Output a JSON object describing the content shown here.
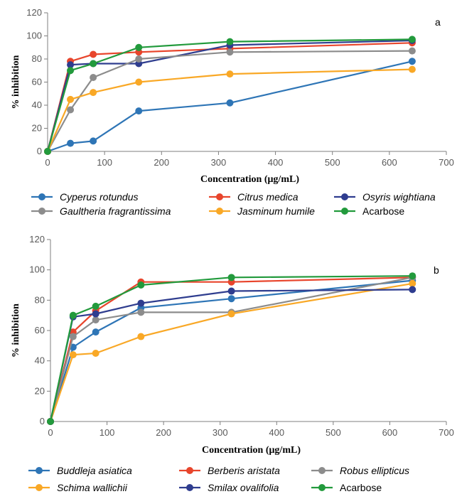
{
  "chart_data": [
    {
      "type": "line",
      "panel_label": "a",
      "xlabel": "Concentration (μg/mL)",
      "ylabel": "% inhibition",
      "xlim": [
        0,
        700
      ],
      "ylim": [
        0,
        120
      ],
      "xticks": [
        0,
        100,
        200,
        300,
        400,
        500,
        600,
        700
      ],
      "yticks": [
        0,
        20,
        40,
        60,
        80,
        100,
        120
      ],
      "grid": false,
      "legend_position": "bottom",
      "series": [
        {
          "name": "Cyperus rotundus",
          "italic": true,
          "color": "#2E75B6",
          "x": [
            0,
            40,
            80,
            160,
            320,
            640
          ],
          "y": [
            0,
            7,
            9,
            35,
            42,
            78
          ]
        },
        {
          "name": "Citrus medica",
          "italic": true,
          "color": "#E8452C",
          "x": [
            0,
            40,
            80,
            160,
            320,
            640
          ],
          "y": [
            0,
            78,
            84,
            86,
            89,
            94
          ]
        },
        {
          "name": "Osyris wightiana",
          "italic": true,
          "color": "#2F3D8F",
          "x": [
            0,
            40,
            80,
            160,
            320,
            640
          ],
          "y": [
            0,
            75,
            76,
            76,
            92,
            96
          ]
        },
        {
          "name": "Gaultheria fragrantissima",
          "italic": true,
          "color": "#8C8C8C",
          "x": [
            0,
            40,
            80,
            160,
            320,
            640
          ],
          "y": [
            0,
            36,
            64,
            80,
            86,
            87
          ]
        },
        {
          "name": "Jasminum humile",
          "italic": true,
          "color": "#F9A826",
          "x": [
            0,
            40,
            80,
            160,
            320,
            640
          ],
          "y": [
            0,
            45,
            51,
            60,
            67,
            71
          ]
        },
        {
          "name": "Acarbose",
          "italic": false,
          "color": "#229A3C",
          "x": [
            0,
            40,
            80,
            160,
            320,
            640
          ],
          "y": [
            0,
            70,
            76,
            90,
            95,
            97
          ]
        }
      ]
    },
    {
      "type": "line",
      "panel_label": "b",
      "xlabel": "Concentration (μg/mL)",
      "ylabel": "% inhibition",
      "xlim": [
        0,
        700
      ],
      "ylim": [
        0,
        120
      ],
      "xticks": [
        0,
        100,
        200,
        300,
        400,
        500,
        600,
        700
      ],
      "yticks": [
        0,
        20,
        40,
        60,
        80,
        100,
        120
      ],
      "grid": false,
      "legend_position": "bottom",
      "series": [
        {
          "name": "Buddleja asiatica",
          "italic": true,
          "color": "#2E75B6",
          "x": [
            0,
            40,
            80,
            160,
            320,
            640
          ],
          "y": [
            0,
            49,
            59,
            75,
            81,
            93
          ]
        },
        {
          "name": "Berberis aristata",
          "italic": true,
          "color": "#E8452C",
          "x": [
            0,
            40,
            80,
            160,
            320,
            640
          ],
          "y": [
            0,
            59,
            73,
            92,
            92,
            95
          ]
        },
        {
          "name": "Robus ellipticus",
          "italic": true,
          "color": "#8C8C8C",
          "x": [
            0,
            40,
            80,
            160,
            320,
            640
          ],
          "y": [
            0,
            56,
            67,
            72,
            72,
            95
          ]
        },
        {
          "name": "Schima wallichii",
          "italic": true,
          "color": "#F9A826",
          "x": [
            0,
            40,
            80,
            160,
            320,
            640
          ],
          "y": [
            0,
            44,
            45,
            56,
            71,
            91
          ]
        },
        {
          "name": "Smilax ovalifolia",
          "italic": true,
          "color": "#2F3D8F",
          "x": [
            0,
            40,
            80,
            160,
            320,
            640
          ],
          "y": [
            0,
            69,
            71,
            78,
            86,
            87
          ]
        },
        {
          "name": "Acarbose",
          "italic": false,
          "color": "#229A3C",
          "x": [
            0,
            40,
            80,
            160,
            320,
            640
          ],
          "y": [
            0,
            70,
            76,
            90,
            95,
            96
          ]
        }
      ]
    }
  ]
}
